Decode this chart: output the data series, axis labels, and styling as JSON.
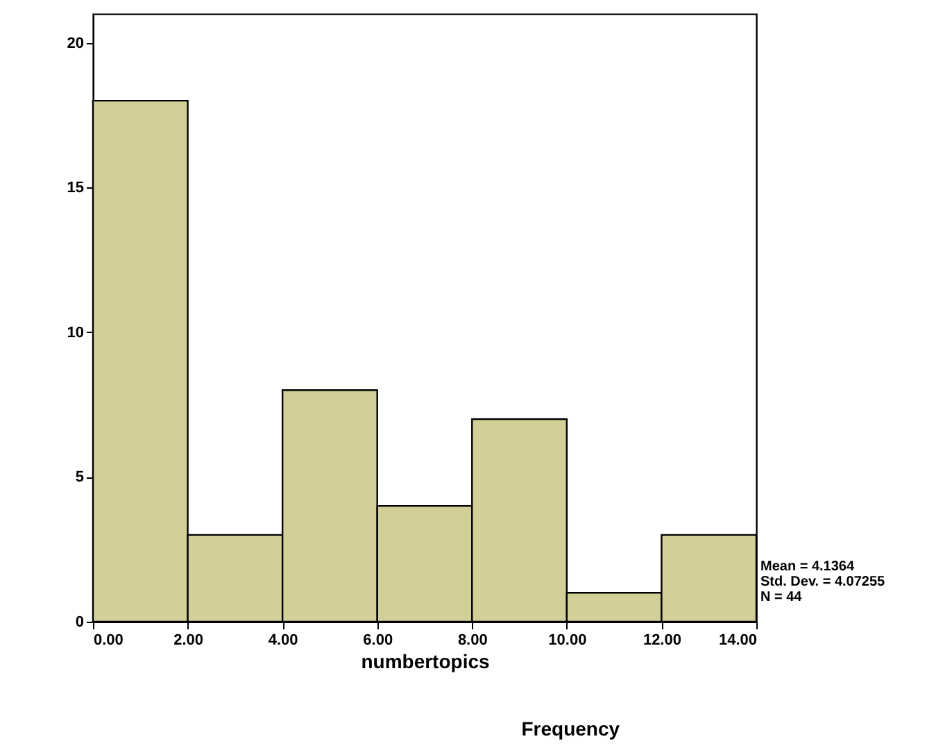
{
  "chart_data": {
    "type": "histogram",
    "xlabel": "numbertopics",
    "bins": [
      0,
      2,
      4,
      6,
      8,
      10,
      12,
      14
    ],
    "values": [
      18,
      3,
      8,
      4,
      7,
      1,
      3
    ],
    "color": "#d3cf99",
    "xlim": [
      0,
      14
    ],
    "xticks": [
      {
        "value": 0,
        "label": "0.00"
      },
      {
        "value": 2,
        "label": "2.00"
      },
      {
        "value": 4,
        "label": "4.00"
      },
      {
        "value": 6,
        "label": "6.00"
      },
      {
        "value": 8,
        "label": "8.00"
      },
      {
        "value": 10,
        "label": "10.00"
      },
      {
        "value": 12,
        "label": "12.00"
      },
      {
        "value": 14,
        "label": "14.00"
      }
    ],
    "ylim": [
      0,
      21
    ],
    "yticks": [
      0,
      5,
      10,
      15,
      20
    ],
    "grid": false,
    "annotations": [
      "Mean = 4.1364",
      "Std. Dev. = 4.07255",
      "N = 44",
      "Frequency"
    ]
  }
}
